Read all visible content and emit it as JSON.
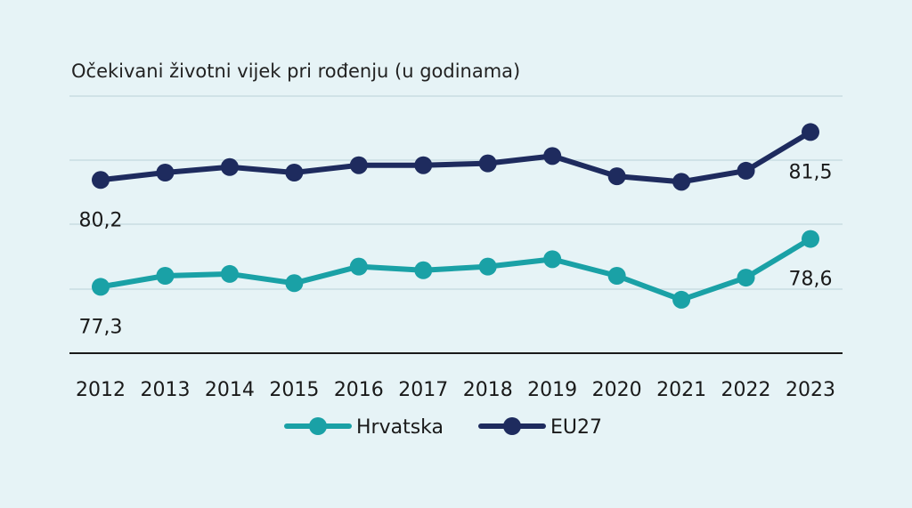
{
  "chart_data": {
    "type": "line",
    "title": "Očekivani životni vijek pri rođenju (u godinama)",
    "xlabel": "",
    "ylabel": "",
    "categories": [
      "2012",
      "2013",
      "2014",
      "2015",
      "2016",
      "2017",
      "2018",
      "2019",
      "2020",
      "2021",
      "2022",
      "2023"
    ],
    "ylim": [
      75.5,
      82.5
    ],
    "grid": true,
    "legend_position": "bottom",
    "series": [
      {
        "name": "Hrvatska",
        "color": "#1aa1a6",
        "values": [
          77.3,
          77.6,
          77.65,
          77.4,
          77.85,
          77.75,
          77.85,
          78.05,
          77.6,
          76.95,
          77.55,
          78.6
        ],
        "labels": [
          {
            "index": 0,
            "text": "77,3",
            "anchor": "below"
          },
          {
            "index": 11,
            "text": "78,6",
            "anchor": "below"
          }
        ]
      },
      {
        "name": "EU27",
        "color": "#1e2b5e",
        "values": [
          80.2,
          80.4,
          80.55,
          80.4,
          80.6,
          80.6,
          80.65,
          80.85,
          80.3,
          80.15,
          80.45,
          81.5
        ],
        "labels": [
          {
            "index": 0,
            "text": "80,2",
            "anchor": "below"
          },
          {
            "index": 11,
            "text": "81,5",
            "anchor": "below"
          }
        ]
      }
    ]
  }
}
